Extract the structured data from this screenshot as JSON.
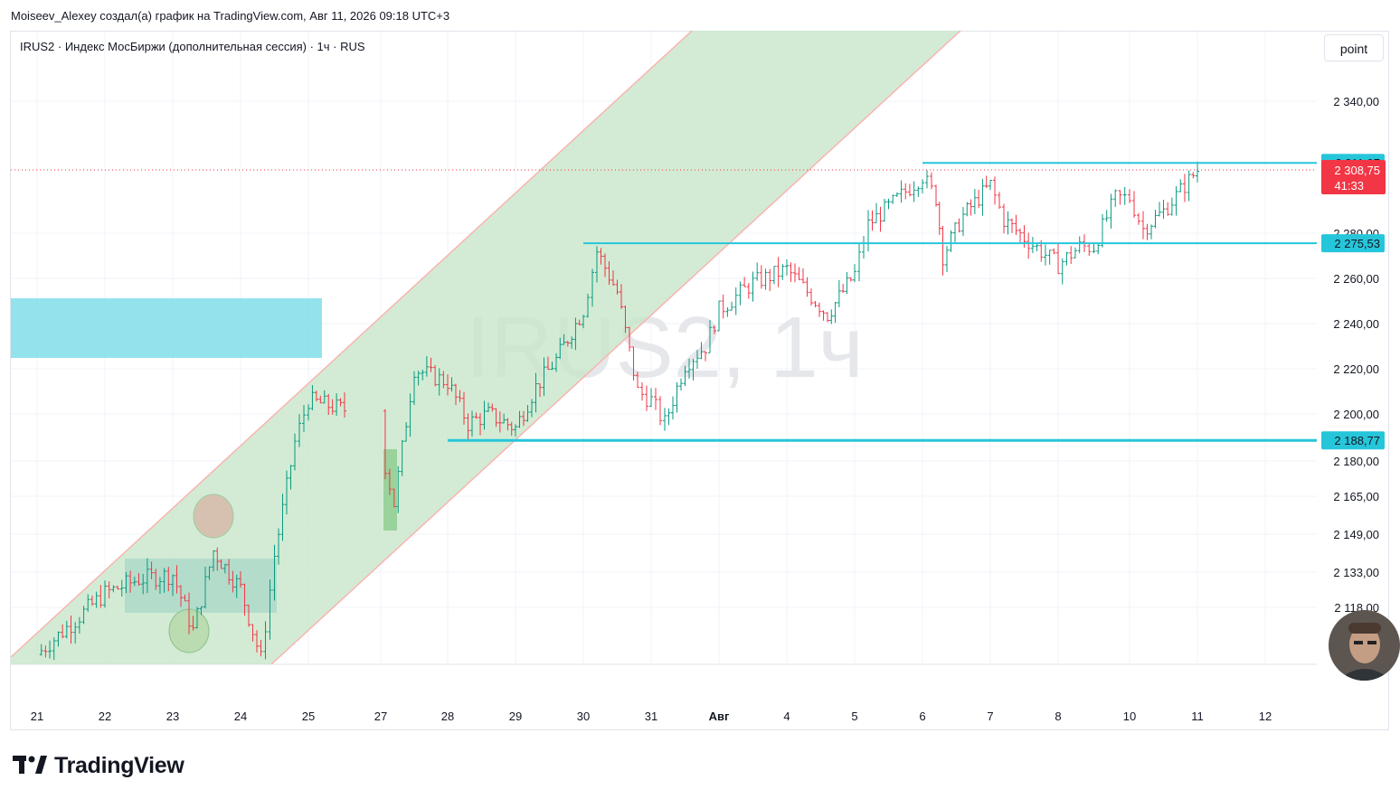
{
  "header": {
    "author_line": "Moiseev_Alexey создал(а) график на TradingView.com, Авг 11, 2026 09:18 UTC+3"
  },
  "symbol": {
    "title": "IRUS2 · Индекс МосБиржи (дополнительная сессия) · 1ч · RUS",
    "watermark": "IRUS2, 1ч"
  },
  "toolbar": {
    "unit_label": "point"
  },
  "footer": {
    "logo_text": "TradingView"
  },
  "avatar": {
    "icon": "user-avatar-icon"
  },
  "colors": {
    "up": "#089981",
    "down": "#f23645",
    "level": "#26c6da",
    "channel_fill": "#c8e6c9",
    "channel_edge": "#f8b4b0",
    "zone_fill": "#80deea",
    "price_line": "#f23645"
  },
  "chart_data": {
    "type": "candlestick",
    "timeframe": "1ч",
    "x_ticks": [
      "21",
      "22",
      "23",
      "24",
      "25",
      "27",
      "28",
      "29",
      "30",
      "31",
      "Авг",
      "4",
      "5",
      "6",
      "7",
      "8",
      "10",
      "11",
      "12"
    ],
    "y_ticks": [
      "2 340,00",
      "2 280,00",
      "2 260,00",
      "2 240,00",
      "2 220,00",
      "2 200,00",
      "2 180,00",
      "2 165,00",
      "2 149,00",
      "2 133,00",
      "2 118,00"
    ],
    "y_tick_values": [
      2340,
      2280,
      2260,
      2240,
      2220,
      2200,
      2180,
      2165,
      2149,
      2133,
      2118
    ],
    "levels": [
      {
        "label": "2 311,97",
        "value": 2311.97,
        "from": "6"
      },
      {
        "label": "2 275,53",
        "value": 2275.53,
        "from": "30"
      },
      {
        "label": "2 188,77",
        "value": 2188.77,
        "from": "28"
      }
    ],
    "last_price": {
      "label": "2 308,75",
      "value": 2308.75,
      "countdown": "41:33"
    },
    "trend_channel": {
      "lower_from": [
        "21",
        2098
      ],
      "lower_to": [
        "5",
        2322
      ],
      "upper_from": [
        "21",
        2103
      ],
      "upper_to": [
        "30",
        2350
      ]
    },
    "closes_path": [
      [
        "21",
        2098
      ],
      [
        "22",
        2124
      ],
      [
        "22.5",
        2130
      ],
      [
        "23",
        2132
      ],
      [
        "23.3",
        2108
      ],
      [
        "23.6",
        2142
      ],
      [
        "24",
        2126
      ],
      [
        "24.3",
        2096
      ],
      [
        "24.5",
        2140
      ],
      [
        "24.8",
        2188
      ],
      [
        "25",
        2206
      ],
      [
        "25.5",
        2202
      ],
      [
        "26",
        2184
      ],
      [
        "26.5",
        2180
      ],
      [
        "27",
        2186
      ],
      [
        "27.2",
        2162
      ],
      [
        "27.5",
        2220
      ],
      [
        "28",
        2214
      ],
      [
        "28.3",
        2196
      ],
      [
        "28.6",
        2200
      ],
      [
        "29",
        2194
      ],
      [
        "29.3",
        2212
      ],
      [
        "29.6",
        2224
      ],
      [
        "30",
        2246
      ],
      [
        "30.2",
        2272
      ],
      [
        "30.5",
        2254
      ],
      [
        "30.8",
        2210
      ],
      [
        "31",
        2206
      ],
      [
        "31.2",
        2196
      ],
      [
        "31.5",
        2222
      ],
      [
        "31.8",
        2230
      ],
      [
        "Авг",
        2246
      ],
      [
        "Авг.5",
        2258
      ],
      [
        "4",
        2264
      ],
      [
        "4.3",
        2254
      ],
      [
        "4.6",
        2244
      ],
      [
        "5",
        2262
      ],
      [
        "5.2",
        2284
      ],
      [
        "5.5",
        2292
      ],
      [
        "6",
        2306
      ],
      [
        "6.2",
        2296
      ],
      [
        "6.3",
        2270
      ],
      [
        "6.6",
        2288
      ],
      [
        "7",
        2302
      ],
      [
        "7.2",
        2286
      ],
      [
        "7.5",
        2278
      ],
      [
        "8",
        2266
      ],
      [
        "8.3",
        2274
      ],
      [
        "8.5",
        2274
      ],
      [
        "8.8",
        2296
      ],
      [
        "10",
        2296
      ],
      [
        "10.2",
        2282
      ],
      [
        "10.5",
        2290
      ],
      [
        "11",
        2308.75
      ]
    ]
  }
}
